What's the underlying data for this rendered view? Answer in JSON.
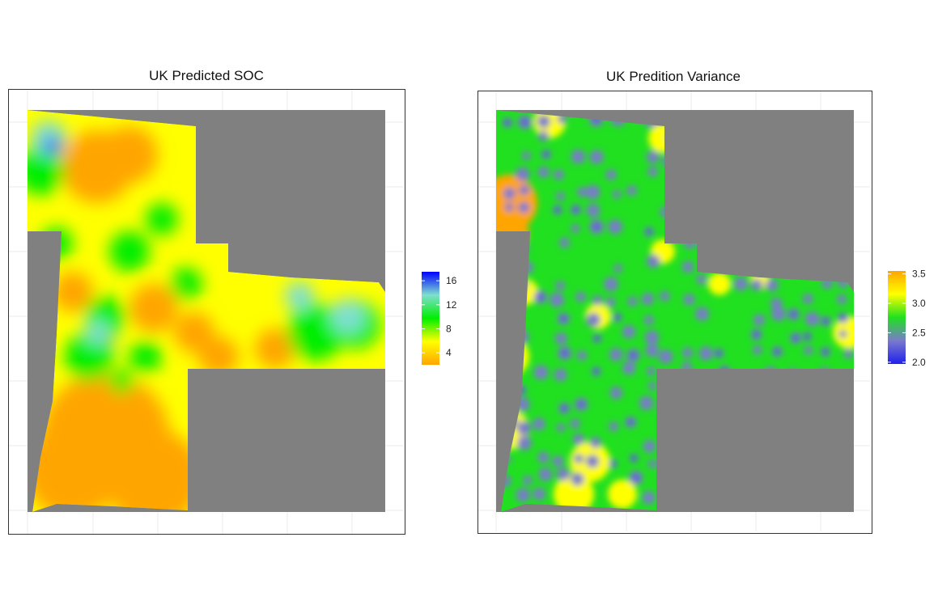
{
  "chart_data": [
    {
      "type": "heatmap",
      "title": "UK Predicted SOC",
      "xlabel": "",
      "ylabel": "",
      "legend": {
        "position": "right",
        "breaks": [
          4,
          8,
          12,
          16
        ],
        "labels": [
          "4",
          "8",
          "12",
          "16"
        ],
        "range": [
          2.0,
          17.5
        ],
        "colors": [
          "#FFA500",
          "#FFFF00",
          "#00EE00",
          "#7FDFD0",
          "#0000FF"
        ]
      },
      "background_color": "#808080",
      "grid": true,
      "zones": [
        {
          "region": "upper-left lobe",
          "value": 5.5
        },
        {
          "region": "far top-left corner",
          "value": 12.5
        },
        {
          "region": "center",
          "value": 9.5
        },
        {
          "region": "center hotspot",
          "value": 16.5
        },
        {
          "region": "right arm east end",
          "value": 10.5
        },
        {
          "region": "lower stem",
          "value": 4.5
        }
      ]
    },
    {
      "type": "heatmap",
      "title": "UK Predition Variance",
      "xlabel": "",
      "ylabel": "",
      "legend": {
        "position": "right",
        "breaks": [
          2.0,
          2.5,
          3.0,
          3.5
        ],
        "labels": [
          "2.0",
          "2.5",
          "3.0",
          "3.5"
        ],
        "range": [
          1.97,
          3.55
        ],
        "colors": [
          "#2020EE",
          "#7A7ACC",
          "#20E020",
          "#FFFF00",
          "#FFA500"
        ]
      },
      "background_color": "#808080",
      "grid": true,
      "zones": [
        {
          "region": "sampled interior",
          "value": 2.1
        },
        {
          "region": "between samples",
          "value": 2.6
        },
        {
          "region": "field edges",
          "value": 3.1
        },
        {
          "region": "western notch edge",
          "value": 3.5
        }
      ]
    }
  ]
}
